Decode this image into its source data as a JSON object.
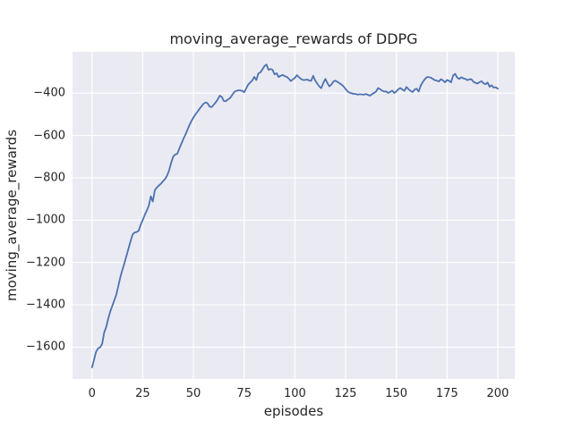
{
  "chart_data": {
    "type": "line",
    "title": "moving_average_rewards of DDPG",
    "xlabel": "episodes",
    "ylabel": "moving_average_rewards",
    "xlim": [
      -9.6,
      208.4
    ],
    "ylim": [
      -1750,
      -205
    ],
    "xticks": [
      0,
      25,
      50,
      75,
      100,
      125,
      150,
      175,
      200
    ],
    "yticks": [
      -400,
      -600,
      -800,
      -1000,
      -1200,
      -1400,
      -1600
    ],
    "grid": true,
    "legend": "none",
    "style": {
      "plot_background": "#EAEAF2",
      "grid_color": "#FFFFFF",
      "line_color": "#4C72B0",
      "text_color": "#262626",
      "figure_background": "#FFFFFF"
    },
    "series": [
      {
        "name": "moving_average_rewards",
        "x_start": 0,
        "x_step": 1,
        "values": [
          -1695,
          -1660,
          -1622,
          -1605,
          -1601,
          -1585,
          -1530,
          -1505,
          -1465,
          -1432,
          -1405,
          -1378,
          -1352,
          -1310,
          -1268,
          -1235,
          -1202,
          -1168,
          -1135,
          -1100,
          -1068,
          -1058,
          -1056,
          -1050,
          -1022,
          -1000,
          -975,
          -955,
          -932,
          -887,
          -912,
          -858,
          -845,
          -836,
          -828,
          -816,
          -806,
          -790,
          -765,
          -730,
          -700,
          -690,
          -687,
          -663,
          -640,
          -618,
          -597,
          -574,
          -552,
          -532,
          -515,
          -500,
          -488,
          -474,
          -462,
          -450,
          -444,
          -448,
          -464,
          -466,
          -455,
          -443,
          -430,
          -412,
          -418,
          -437,
          -438,
          -430,
          -424,
          -410,
          -396,
          -390,
          -387,
          -387,
          -389,
          -396,
          -378,
          -360,
          -350,
          -340,
          -323,
          -338,
          -307,
          -302,
          -288,
          -272,
          -265,
          -290,
          -286,
          -290,
          -312,
          -306,
          -324,
          -318,
          -314,
          -320,
          -323,
          -332,
          -343,
          -335,
          -328,
          -315,
          -325,
          -333,
          -338,
          -338,
          -336,
          -340,
          -342,
          -318,
          -340,
          -355,
          -368,
          -377,
          -352,
          -333,
          -352,
          -368,
          -360,
          -345,
          -341,
          -347,
          -353,
          -360,
          -368,
          -381,
          -392,
          -398,
          -401,
          -404,
          -404,
          -407,
          -405,
          -406,
          -407,
          -404,
          -408,
          -412,
          -405,
          -399,
          -393,
          -376,
          -381,
          -388,
          -393,
          -392,
          -399,
          -394,
          -388,
          -399,
          -392,
          -382,
          -376,
          -383,
          -389,
          -371,
          -382,
          -389,
          -395,
          -383,
          -379,
          -393,
          -365,
          -348,
          -335,
          -325,
          -324,
          -327,
          -333,
          -339,
          -341,
          -345,
          -334,
          -340,
          -349,
          -338,
          -342,
          -349,
          -317,
          -309,
          -327,
          -333,
          -325,
          -330,
          -333,
          -339,
          -335,
          -334,
          -347,
          -351,
          -355,
          -348,
          -344,
          -354,
          -358,
          -350,
          -370,
          -363,
          -374,
          -372,
          -379
        ]
      }
    ]
  }
}
